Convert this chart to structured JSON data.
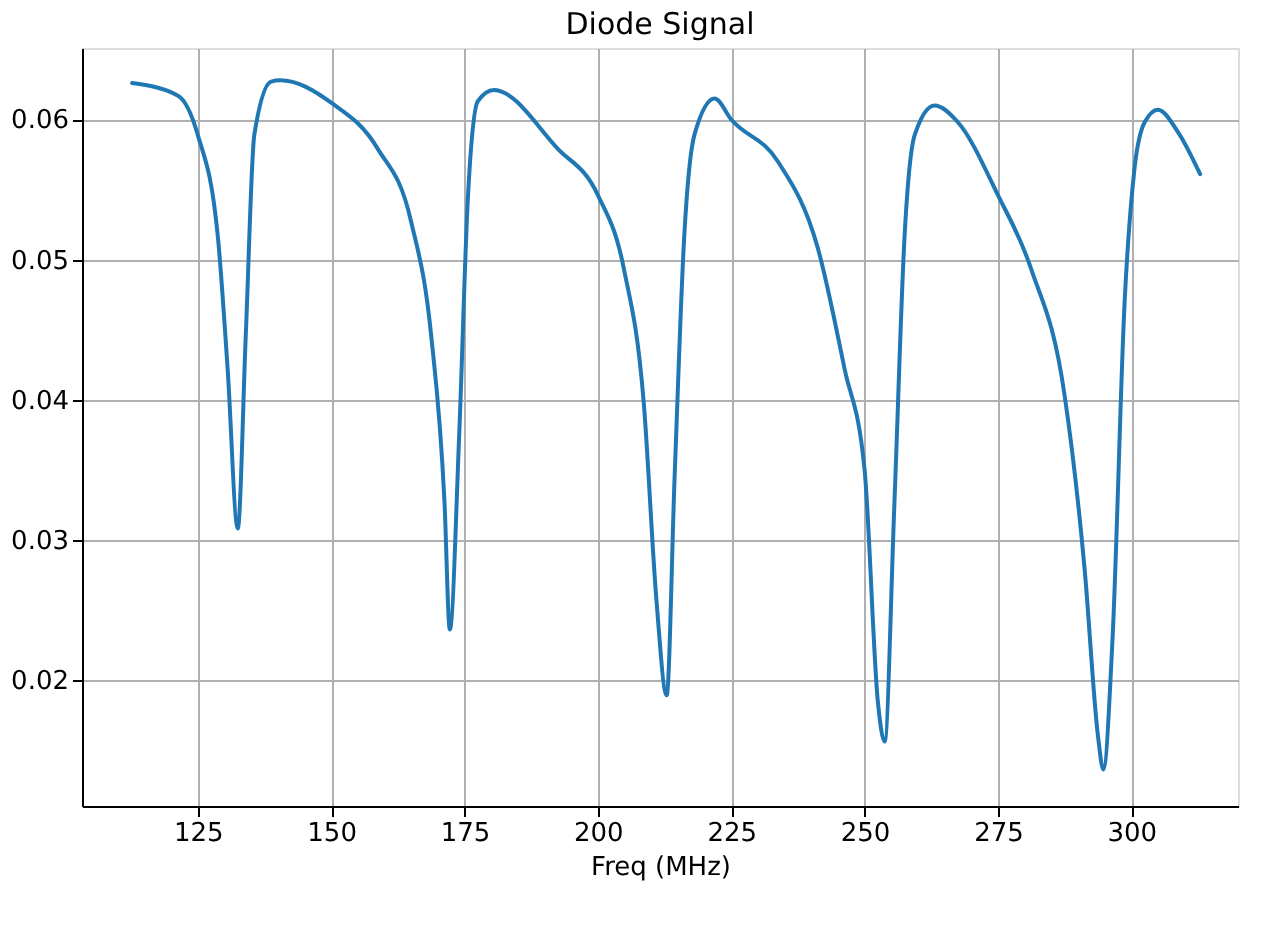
{
  "chart_data": {
    "type": "line",
    "title": "Diode Signal",
    "xlabel": "Freq (MHz)",
    "xlim": [
      103.3,
      320
    ],
    "ylim": [
      0.011,
      0.0651
    ],
    "xticks": [
      125,
      150,
      175,
      200,
      225,
      250,
      275,
      300
    ],
    "yticks": [
      0.02,
      0.03,
      0.04,
      0.05,
      0.06
    ],
    "grid": true,
    "line_style": "solid",
    "marker": "none",
    "series": [
      {
        "color": "#1f77b4",
        "x": [
          112.7,
          121.3,
          125,
          128.75,
          130.6,
          132.5,
          134,
          135.6,
          138.75,
          140.5,
          150,
          158.75,
          165,
          168.75,
          171.25,
          172.25,
          174,
          175.6,
          177.5,
          180.5,
          192.5,
          200,
          204.9,
          208.6,
          211,
          212.9,
          214.4,
          216.2,
          218.1,
          221.9,
          225,
          233.75,
          241.25,
          246.25,
          250,
          252.5,
          253.75,
          255.6,
          257.5,
          259.4,
          263.1,
          267.5,
          275,
          281.25,
          287.5,
          291.25,
          293.75,
          294.75,
          296.5,
          298.75,
          300.6,
          302.5,
          305,
          308.75,
          312.9
        ],
        "values": [
          0.0626,
          0.0617,
          0.0589,
          0.0517,
          0.0422,
          0.0308,
          0.0446,
          0.0589,
          0.0627,
          0.0628,
          0.0612,
          0.0579,
          0.0527,
          0.0446,
          0.0327,
          0.0236,
          0.0374,
          0.0541,
          0.0613,
          0.0621,
          0.0579,
          0.0546,
          0.0493,
          0.0398,
          0.0256,
          0.0189,
          0.0346,
          0.0517,
          0.0589,
          0.0615,
          0.06,
          0.057,
          0.0508,
          0.0422,
          0.035,
          0.0184,
          0.0156,
          0.0327,
          0.0517,
          0.0589,
          0.061,
          0.0598,
          0.0546,
          0.0493,
          0.0403,
          0.0279,
          0.016,
          0.0136,
          0.0231,
          0.047,
          0.0565,
          0.0598,
          0.0607,
          0.0591,
          0.0561
        ]
      }
    ]
  }
}
